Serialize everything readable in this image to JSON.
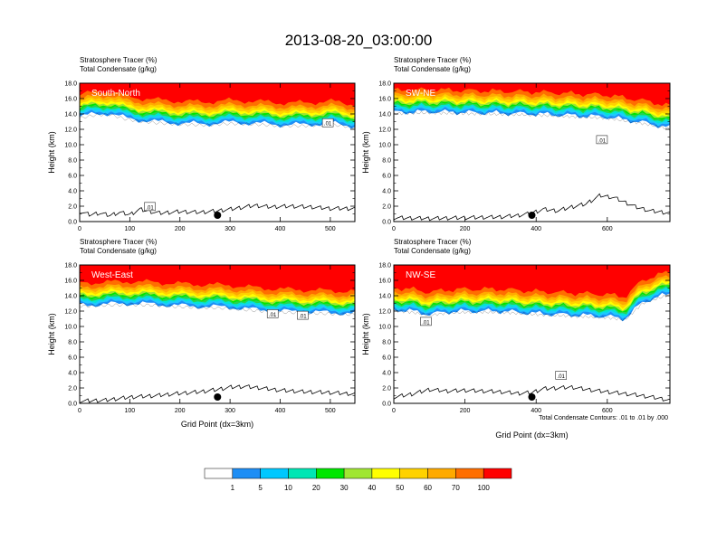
{
  "title": "2013-08-20_03:00:00",
  "colors": {
    "scale": [
      "#ffffff",
      "#1e8ef5",
      "#1ec8ff",
      "#00e6d2",
      "#28d250",
      "#00e600",
      "#a0e632",
      "#ffff00",
      "#ffd200",
      "#ffaa00",
      "#ff6e00",
      "#ff0000"
    ],
    "frame": "#000000"
  },
  "colorbar": {
    "labels": [
      "1",
      "5",
      "10",
      "20",
      "30",
      "40",
      "50",
      "60",
      "70",
      "100"
    ],
    "colors": [
      "#ffffff",
      "#1e8ef5",
      "#00c8ff",
      "#00e6b4",
      "#00e600",
      "#a0e632",
      "#ffff00",
      "#ffd200",
      "#ffaa00",
      "#ff6e00",
      "#ff0000"
    ]
  },
  "footnote": "Total Condensate Contours: .01 to .01 by .000",
  "chart_data": [
    {
      "type": "heatmap",
      "label": "South-North",
      "subtitle_1": "Stratosphere Tracer   (%)",
      "subtitle_2": "Total Condensate   (g/kg)",
      "ylabel": "Height (km)",
      "xlabel": "",
      "xlim": [
        0,
        549
      ],
      "ylim": [
        0,
        18
      ],
      "xticks": [
        0,
        100,
        200,
        300,
        400,
        500
      ],
      "yticks": [
        "0.0",
        "2.0",
        "4.0",
        "6.0",
        "8.0",
        "10.0",
        "12.0",
        "14.0",
        "16.0",
        "18.0"
      ],
      "marker_x": 275,
      "contour_labels": [
        {
          "text": ".01",
          "x": 495,
          "y": 12.8
        },
        {
          "text": ".01",
          "x": 140,
          "y": 1.9
        }
      ],
      "tropopause_km": [
        [
          0,
          13.6
        ],
        [
          30,
          14.0
        ],
        [
          60,
          14.1
        ],
        [
          90,
          13.5
        ],
        [
          120,
          13.2
        ],
        [
          150,
          13.0
        ],
        [
          200,
          12.8
        ],
        [
          250,
          12.7
        ],
        [
          300,
          12.9
        ],
        [
          350,
          12.8
        ],
        [
          400,
          12.6
        ],
        [
          450,
          12.6
        ],
        [
          500,
          12.8
        ],
        [
          549,
          12.4
        ]
      ],
      "terrain_km": [
        [
          0,
          1.3
        ],
        [
          20,
          0.9
        ],
        [
          40,
          1.1
        ],
        [
          60,
          0.8
        ],
        [
          80,
          1.2
        ],
        [
          100,
          0.9
        ],
        [
          120,
          1.6
        ],
        [
          140,
          1.3
        ],
        [
          160,
          1.1
        ],
        [
          200,
          1.3
        ],
        [
          240,
          1.2
        ],
        [
          275,
          1.4
        ],
        [
          300,
          1.6
        ],
        [
          330,
          1.9
        ],
        [
          350,
          2.1
        ],
        [
          380,
          1.9
        ],
        [
          420,
          2.0
        ],
        [
          460,
          1.9
        ],
        [
          500,
          1.7
        ],
        [
          549,
          1.7
        ]
      ]
    },
    {
      "type": "heatmap",
      "label": "SW-NE",
      "subtitle_1": "Stratosphere Tracer   (%)",
      "subtitle_2": "Total Condensate   (g/kg)",
      "ylabel": "Height (km)",
      "xlabel": "",
      "xlim": [
        0,
        776
      ],
      "ylim": [
        0,
        18
      ],
      "xticks": [
        0,
        200,
        400,
        600
      ],
      "yticks": [
        "0.0",
        "2.0",
        "4.0",
        "6.0",
        "8.0",
        "10.0",
        "12.0",
        "14.0",
        "16.0",
        "18.0"
      ],
      "marker_x": 388,
      "contour_labels": [
        {
          "text": ".01",
          "x": 585,
          "y": 10.6
        }
      ],
      "tropopause_km": [
        [
          0,
          14.2
        ],
        [
          100,
          14.3
        ],
        [
          200,
          14.2
        ],
        [
          300,
          14.1
        ],
        [
          400,
          14.0
        ],
        [
          500,
          13.8
        ],
        [
          600,
          13.6
        ],
        [
          700,
          12.9
        ],
        [
          776,
          12.2
        ]
      ],
      "terrain_km": [
        [
          0,
          0.5
        ],
        [
          100,
          0.4
        ],
        [
          200,
          0.5
        ],
        [
          300,
          0.6
        ],
        [
          350,
          0.8
        ],
        [
          388,
          1.1
        ],
        [
          420,
          1.6
        ],
        [
          460,
          1.4
        ],
        [
          500,
          1.9
        ],
        [
          540,
          2.3
        ],
        [
          580,
          3.4
        ],
        [
          620,
          3.1
        ],
        [
          650,
          2.5
        ],
        [
          680,
          1.9
        ],
        [
          720,
          1.4
        ],
        [
          776,
          1.1
        ]
      ]
    },
    {
      "type": "heatmap",
      "label": "West-East",
      "subtitle_1": "Stratosphere Tracer   (%)",
      "subtitle_2": "Total Condensate   (g/kg)",
      "ylabel": "Height (km)",
      "xlabel": "Grid Point (dx=3km)",
      "xlim": [
        0,
        549
      ],
      "ylim": [
        0,
        18
      ],
      "xticks": [
        0,
        100,
        200,
        300,
        400,
        500
      ],
      "yticks": [
        "0.0",
        "2.0",
        "4.0",
        "6.0",
        "8.0",
        "10.0",
        "12.0",
        "14.0",
        "16.0",
        "18.0"
      ],
      "marker_x": 275,
      "contour_labels": [
        {
          "text": ".01",
          "x": 385,
          "y": 11.6
        },
        {
          "text": ".01",
          "x": 445,
          "y": 11.4
        }
      ],
      "tropopause_km": [
        [
          0,
          12.8
        ],
        [
          50,
          12.9
        ],
        [
          100,
          13.0
        ],
        [
          150,
          12.9
        ],
        [
          200,
          12.7
        ],
        [
          250,
          12.6
        ],
        [
          300,
          12.5
        ],
        [
          350,
          12.2
        ],
        [
          400,
          12.0
        ],
        [
          450,
          11.9
        ],
        [
          500,
          11.8
        ],
        [
          549,
          11.7
        ]
      ],
      "terrain_km": [
        [
          0,
          0.3
        ],
        [
          50,
          0.4
        ],
        [
          100,
          0.8
        ],
        [
          150,
          1.0
        ],
        [
          200,
          1.3
        ],
        [
          240,
          1.5
        ],
        [
          275,
          1.8
        ],
        [
          300,
          2.1
        ],
        [
          330,
          2.2
        ],
        [
          360,
          2.0
        ],
        [
          400,
          1.7
        ],
        [
          450,
          1.5
        ],
        [
          500,
          1.4
        ],
        [
          549,
          1.2
        ]
      ]
    },
    {
      "type": "heatmap",
      "label": "NW-SE",
      "subtitle_1": "Stratosphere Tracer   (%)",
      "subtitle_2": "Total Condensate   (g/kg)",
      "ylabel": "Height (km)",
      "xlabel": "Grid Point (dx=3km)",
      "xlim": [
        0,
        776
      ],
      "ylim": [
        0,
        18
      ],
      "xticks": [
        0,
        200,
        400,
        600
      ],
      "yticks": [
        "0.0",
        "2.0",
        "4.0",
        "6.0",
        "8.0",
        "10.0",
        "12.0",
        "14.0",
        "16.0",
        "18.0"
      ],
      "marker_x": 388,
      "contour_labels": [
        {
          "text": ".01",
          "x": 90,
          "y": 10.6
        },
        {
          "text": ".01",
          "x": 470,
          "y": 3.6
        }
      ],
      "tropopause_km": [
        [
          0,
          12.2
        ],
        [
          50,
          12.0
        ],
        [
          100,
          11.6
        ],
        [
          150,
          11.9
        ],
        [
          200,
          12.0
        ],
        [
          300,
          12.0
        ],
        [
          400,
          11.7
        ],
        [
          500,
          11.5
        ],
        [
          600,
          11.3
        ],
        [
          650,
          11.0
        ],
        [
          700,
          13.2
        ],
        [
          776,
          14.3
        ]
      ],
      "terrain_km": [
        [
          0,
          0.8
        ],
        [
          50,
          1.2
        ],
        [
          100,
          1.8
        ],
        [
          150,
          1.6
        ],
        [
          200,
          1.7
        ],
        [
          250,
          1.6
        ],
        [
          300,
          1.5
        ],
        [
          350,
          1.3
        ],
        [
          388,
          1.4
        ],
        [
          420,
          1.9
        ],
        [
          460,
          2.0
        ],
        [
          500,
          2.1
        ],
        [
          560,
          1.7
        ],
        [
          620,
          1.4
        ],
        [
          680,
          1.1
        ],
        [
          740,
          0.7
        ],
        [
          776,
          0.4
        ]
      ]
    }
  ]
}
